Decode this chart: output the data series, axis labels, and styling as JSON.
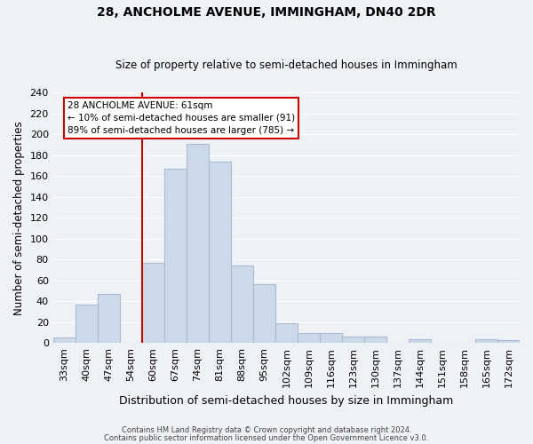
{
  "title": "28, ANCHOLME AVENUE, IMMINGHAM, DN40 2DR",
  "subtitle": "Size of property relative to semi-detached houses in Immingham",
  "xlabel": "Distribution of semi-detached houses by size in Immingham",
  "ylabel": "Number of semi-detached properties",
  "footer_line1": "Contains HM Land Registry data © Crown copyright and database right 2024.",
  "footer_line2": "Contains public sector information licensed under the Open Government Licence v3.0.",
  "bin_labels": [
    "33sqm",
    "40sqm",
    "47sqm",
    "54sqm",
    "60sqm",
    "67sqm",
    "74sqm",
    "81sqm",
    "88sqm",
    "95sqm",
    "102sqm",
    "109sqm",
    "116sqm",
    "123sqm",
    "130sqm",
    "137sqm",
    "144sqm",
    "151sqm",
    "158sqm",
    "165sqm",
    "172sqm"
  ],
  "bar_values": [
    5,
    37,
    47,
    0,
    77,
    167,
    191,
    174,
    74,
    56,
    19,
    10,
    10,
    6,
    6,
    0,
    4,
    0,
    0,
    4,
    3
  ],
  "bar_color": "#ccd9e8",
  "bar_edge_color": "#aabbd0",
  "highlight_bar_index": 4,
  "highlight_line_color": "#cc0000",
  "annotation_title": "28 ANCHOLME AVENUE: 61sqm",
  "annotation_line1": "← 10% of semi-detached houses are smaller (91)",
  "annotation_line2": "89% of semi-detached houses are larger (785) →",
  "annotation_box_color": "#ffffff",
  "annotation_box_edge": "#cc0000",
  "ylim": [
    0,
    240
  ],
  "yticks": [
    0,
    20,
    40,
    60,
    80,
    100,
    120,
    140,
    160,
    180,
    200,
    220,
    240
  ],
  "background_color": "#eef2f7",
  "grid_color": "#ffffff"
}
